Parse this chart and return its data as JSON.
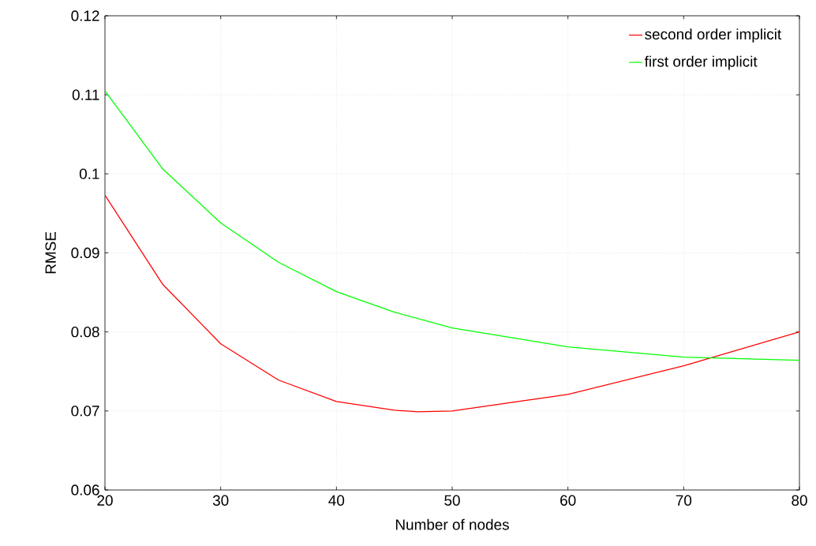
{
  "chart_data": {
    "type": "line",
    "xlabel": "Number of nodes",
    "ylabel": "RMSE",
    "xlim": [
      20,
      80
    ],
    "ylim": [
      0.06,
      0.12
    ],
    "xticks": [
      20,
      30,
      40,
      50,
      60,
      70,
      80
    ],
    "yticks": [
      0.06,
      0.07,
      0.08,
      0.09,
      0.1,
      0.11,
      0.12
    ],
    "grid": true,
    "legend": "top right",
    "marker": "none",
    "line_style": "solid",
    "series": [
      {
        "name": "second order implicit",
        "color": "#ff0000",
        "x": [
          20,
          25,
          30,
          35,
          40,
          45,
          47,
          50,
          60,
          70,
          80
        ],
        "values": [
          0.0973,
          0.086,
          0.0785,
          0.0739,
          0.0712,
          0.0701,
          0.0699,
          0.07,
          0.0721,
          0.0757,
          0.08
        ]
      },
      {
        "name": "first order implicit",
        "color": "#00ff00",
        "x": [
          20,
          25,
          30,
          35,
          40,
          45,
          50,
          60,
          70,
          80
        ],
        "values": [
          0.1105,
          0.1006,
          0.0938,
          0.0888,
          0.0851,
          0.0825,
          0.0805,
          0.0781,
          0.0768,
          0.0764
        ]
      }
    ]
  }
}
